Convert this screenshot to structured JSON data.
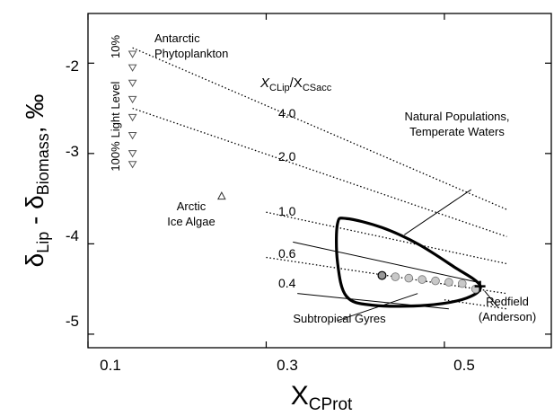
{
  "chart_data": {
    "type": "scatter",
    "xlabel": {
      "main": "X",
      "sub": "CProt"
    },
    "ylabel": {
      "p1": "δ",
      "s1": "Lip",
      "p2": " - δ",
      "s2": "Biomass",
      "p3": ", ‰"
    },
    "xlim": [
      0.1,
      0.62
    ],
    "ylim": [
      -5.15,
      -1.45
    ],
    "xticks": [
      0.1,
      0.3,
      0.5
    ],
    "xtick_labels": [
      "0.1",
      "0.3",
      "0.5"
    ],
    "yticks": [
      -2,
      -3,
      -4,
      -5
    ],
    "ytick_labels": [
      "-2",
      "-3",
      "-4",
      "-5"
    ],
    "grid": false,
    "ratio_label": {
      "p1": "X",
      "s1": "CLip",
      "p2": "/X",
      "s2": "CSacc"
    },
    "ratio_lines": [
      {
        "label": "4.0",
        "x": [
          0.15,
          0.57
        ],
        "y": [
          -1.83,
          -3.62
        ]
      },
      {
        "label": "2.0",
        "x": [
          0.15,
          0.57
        ],
        "y": [
          -2.5,
          -3.92
        ]
      },
      {
        "label": "1.0",
        "x": [
          0.3,
          0.57
        ],
        "y": [
          -3.65,
          -4.22
        ]
      },
      {
        "label": "0.6",
        "x": [
          0.3,
          0.57
        ],
        "y": [
          -4.15,
          -4.55
        ]
      },
      {
        "label": "0.4",
        "x": [
          0.5,
          0.57
        ],
        "y": [
          -4.62,
          -4.72
        ]
      }
    ],
    "antarctic_points": {
      "x": 0.15,
      "y": [
        -1.9,
        -2.05,
        -2.22,
        -2.4,
        -2.6,
        -2.8,
        -3.0,
        -3.12
      ]
    },
    "arctic_point": {
      "x": 0.25,
      "y": -3.47
    },
    "light_level": {
      "title": "Light Level",
      "top": "10%",
      "bottom": "100%"
    },
    "subtropical_gyres": {
      "x": [
        0.43,
        0.445,
        0.46,
        0.475,
        0.49,
        0.505,
        0.52,
        0.535
      ],
      "y": [
        -4.35,
        -4.365,
        -4.38,
        -4.395,
        -4.41,
        -4.425,
        -4.44,
        -4.5
      ]
    },
    "redfield": {
      "x": 0.54,
      "y": -4.47
    },
    "natural_populations_contour": {
      "x": [
        0.39,
        0.43,
        0.47,
        0.51,
        0.54,
        0.525,
        0.48,
        0.42,
        0.39,
        0.38,
        0.38
      ],
      "y": [
        -3.72,
        -3.82,
        -4.0,
        -4.25,
        -4.46,
        -4.6,
        -4.68,
        -4.68,
        -4.58,
        -4.2,
        -3.78
      ]
    },
    "annotations": {
      "antarctic": [
        "Antarctic",
        "Phytoplankton"
      ],
      "arctic": [
        "Arctic",
        "Ice Algae"
      ],
      "natural": [
        "Natural Populations,",
        "Temperate Waters"
      ],
      "subtropical": "Subtropical Gyres",
      "redfield": [
        "Redfield",
        "(Anderson)"
      ]
    }
  }
}
